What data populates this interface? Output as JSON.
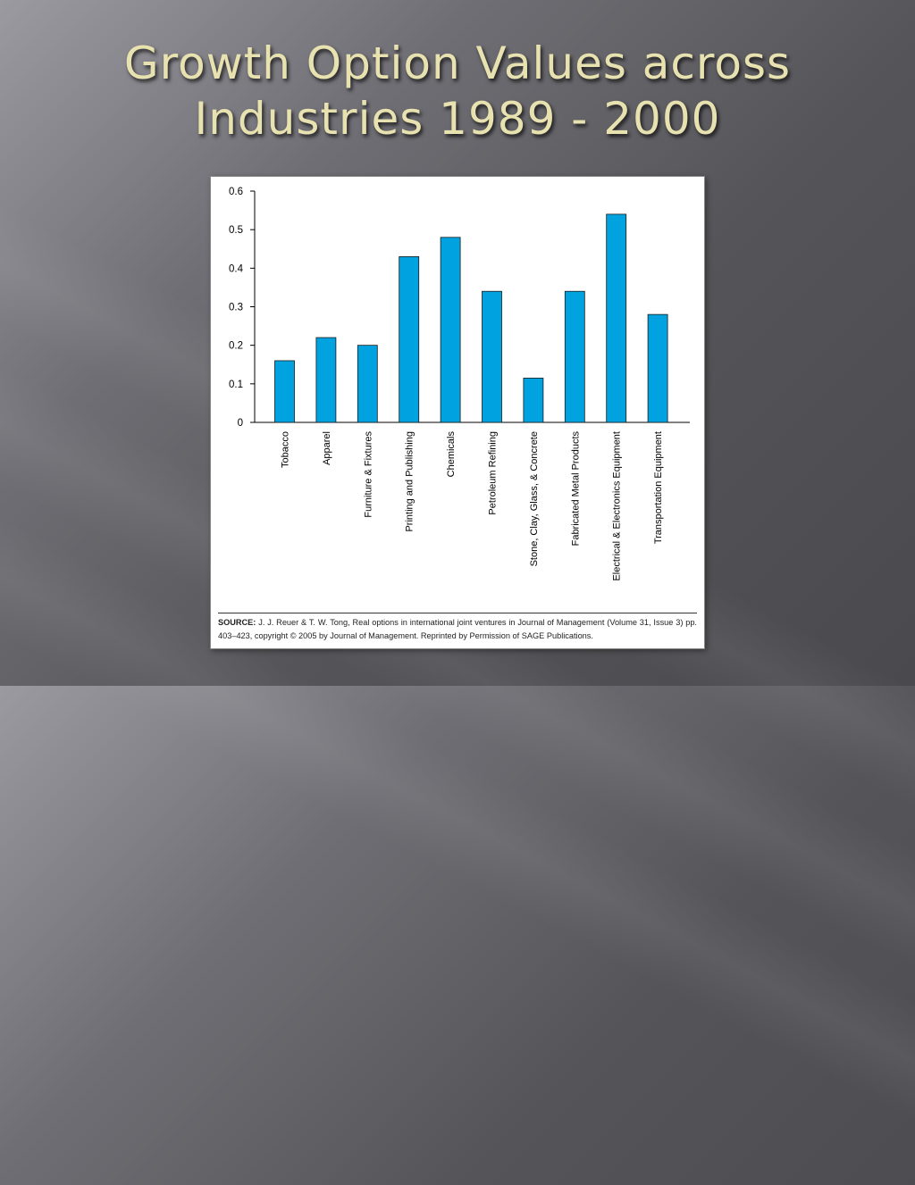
{
  "slide": {
    "title_line1": "Growth Option Values across",
    "title_line2": "Industries 1989 - 2000"
  },
  "source": {
    "label": "SOURCE:",
    "text": "J. J. Reuer & T. W. Tong, Real options in international joint ventures in Journal of Management (Volume 31, Issue 3) pp. 403–423, copyright © 2005 by Journal of Management. Reprinted by Permission of SAGE Publications."
  },
  "colors": {
    "bar": "#00a3e0",
    "title": "#e8e2b0"
  },
  "chart_data": {
    "type": "bar",
    "categories": [
      "Tobacco",
      "Apparel",
      "Furniture & Fixtures",
      "Printing and Publishing",
      "Chemicals",
      "Petroleum Refining",
      "Stone, Clay, Glass, & Concrete",
      "Fabricated Metal Products",
      "Electrical & Electronics Equipment",
      "Transportation Equipment"
    ],
    "values": [
      0.16,
      0.22,
      0.2,
      0.43,
      0.48,
      0.34,
      0.115,
      0.34,
      0.54,
      0.28
    ],
    "yticks": [
      "0",
      "0.1",
      "0.2",
      "0.3",
      "0.4",
      "0.5",
      "0.6"
    ],
    "ylim": [
      0,
      0.6
    ],
    "title": "",
    "xlabel": "",
    "ylabel": "",
    "grid": false,
    "legend": "none"
  }
}
